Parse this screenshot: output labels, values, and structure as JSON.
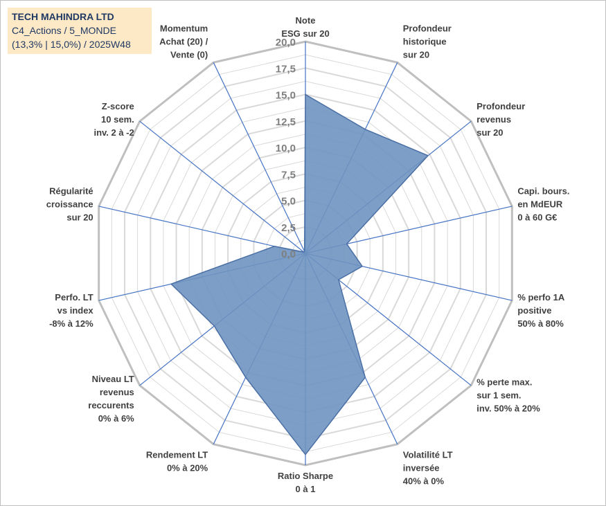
{
  "title_box": {
    "lines": [
      "TECH MAHINDRA LTD",
      "C4_Actions / 5_MONDE",
      "(13,3% | 15,0%) / 2025W48"
    ]
  },
  "chart_data": {
    "type": "radar",
    "rmax": 20,
    "ticks": [
      "0,0",
      "2,5",
      "5,0",
      "7,5",
      "10,0",
      "12,5",
      "15,0",
      "17,5",
      "20,0"
    ],
    "tick_values": [
      0,
      2.5,
      5,
      7.5,
      10,
      12.5,
      15,
      17.5,
      20
    ],
    "axes": [
      {
        "label": [
          "Note",
          "ESG sur 20"
        ],
        "value": 15.0
      },
      {
        "label": [
          "Profondeur",
          "historique",
          "sur 20"
        ],
        "value": 13.0
      },
      {
        "label": [
          "Profondeur",
          "revenus",
          "sur 20"
        ],
        "value": 14.8
      },
      {
        "label": [
          "Capi. bours.",
          "en MdEUR",
          "0 à 60 G€"
        ],
        "value": 4.0
      },
      {
        "label": [
          "% perfo 1A",
          "positive",
          "50% à 80%"
        ],
        "value": 5.5
      },
      {
        "label": [
          "% perte max.",
          "sur 1 sem.",
          "inv. 50% à 20%"
        ],
        "value": 4.0
      },
      {
        "label": [
          "Volatilité LT",
          "inversée",
          "40% à 0%"
        ],
        "value": 13.0
      },
      {
        "label": [
          "Ratio Sharpe",
          "0 à 1"
        ],
        "value": 19.0
      },
      {
        "label": [
          "Rendement LT",
          "0% à 20%"
        ],
        "value": 13.0
      },
      {
        "label": [
          "Niveau LT",
          "revenus",
          "reccurents",
          "0% à 6%"
        ],
        "value": 11.0
      },
      {
        "label": [
          "Perfo. LT",
          "vs index",
          "-8% à 12%"
        ],
        "value": 13.0
      },
      {
        "label": [
          "Régularité",
          "croissance",
          "sur 20"
        ],
        "value": 3.0
      },
      {
        "label": [
          "Z-score",
          "10 sem.",
          "inv. 2 à -2"
        ],
        "value": 0.2
      },
      {
        "label": [
          "Momentum",
          "Achat (20) /",
          "Vente (0)"
        ],
        "value": 0.2
      }
    ],
    "colors": {
      "fill": "#6f93c0",
      "stroke": "#4a6fa5",
      "axis": "#4472c4",
      "ring": "#d9d9d9",
      "outer_ring": "#bfbfbf"
    }
  }
}
